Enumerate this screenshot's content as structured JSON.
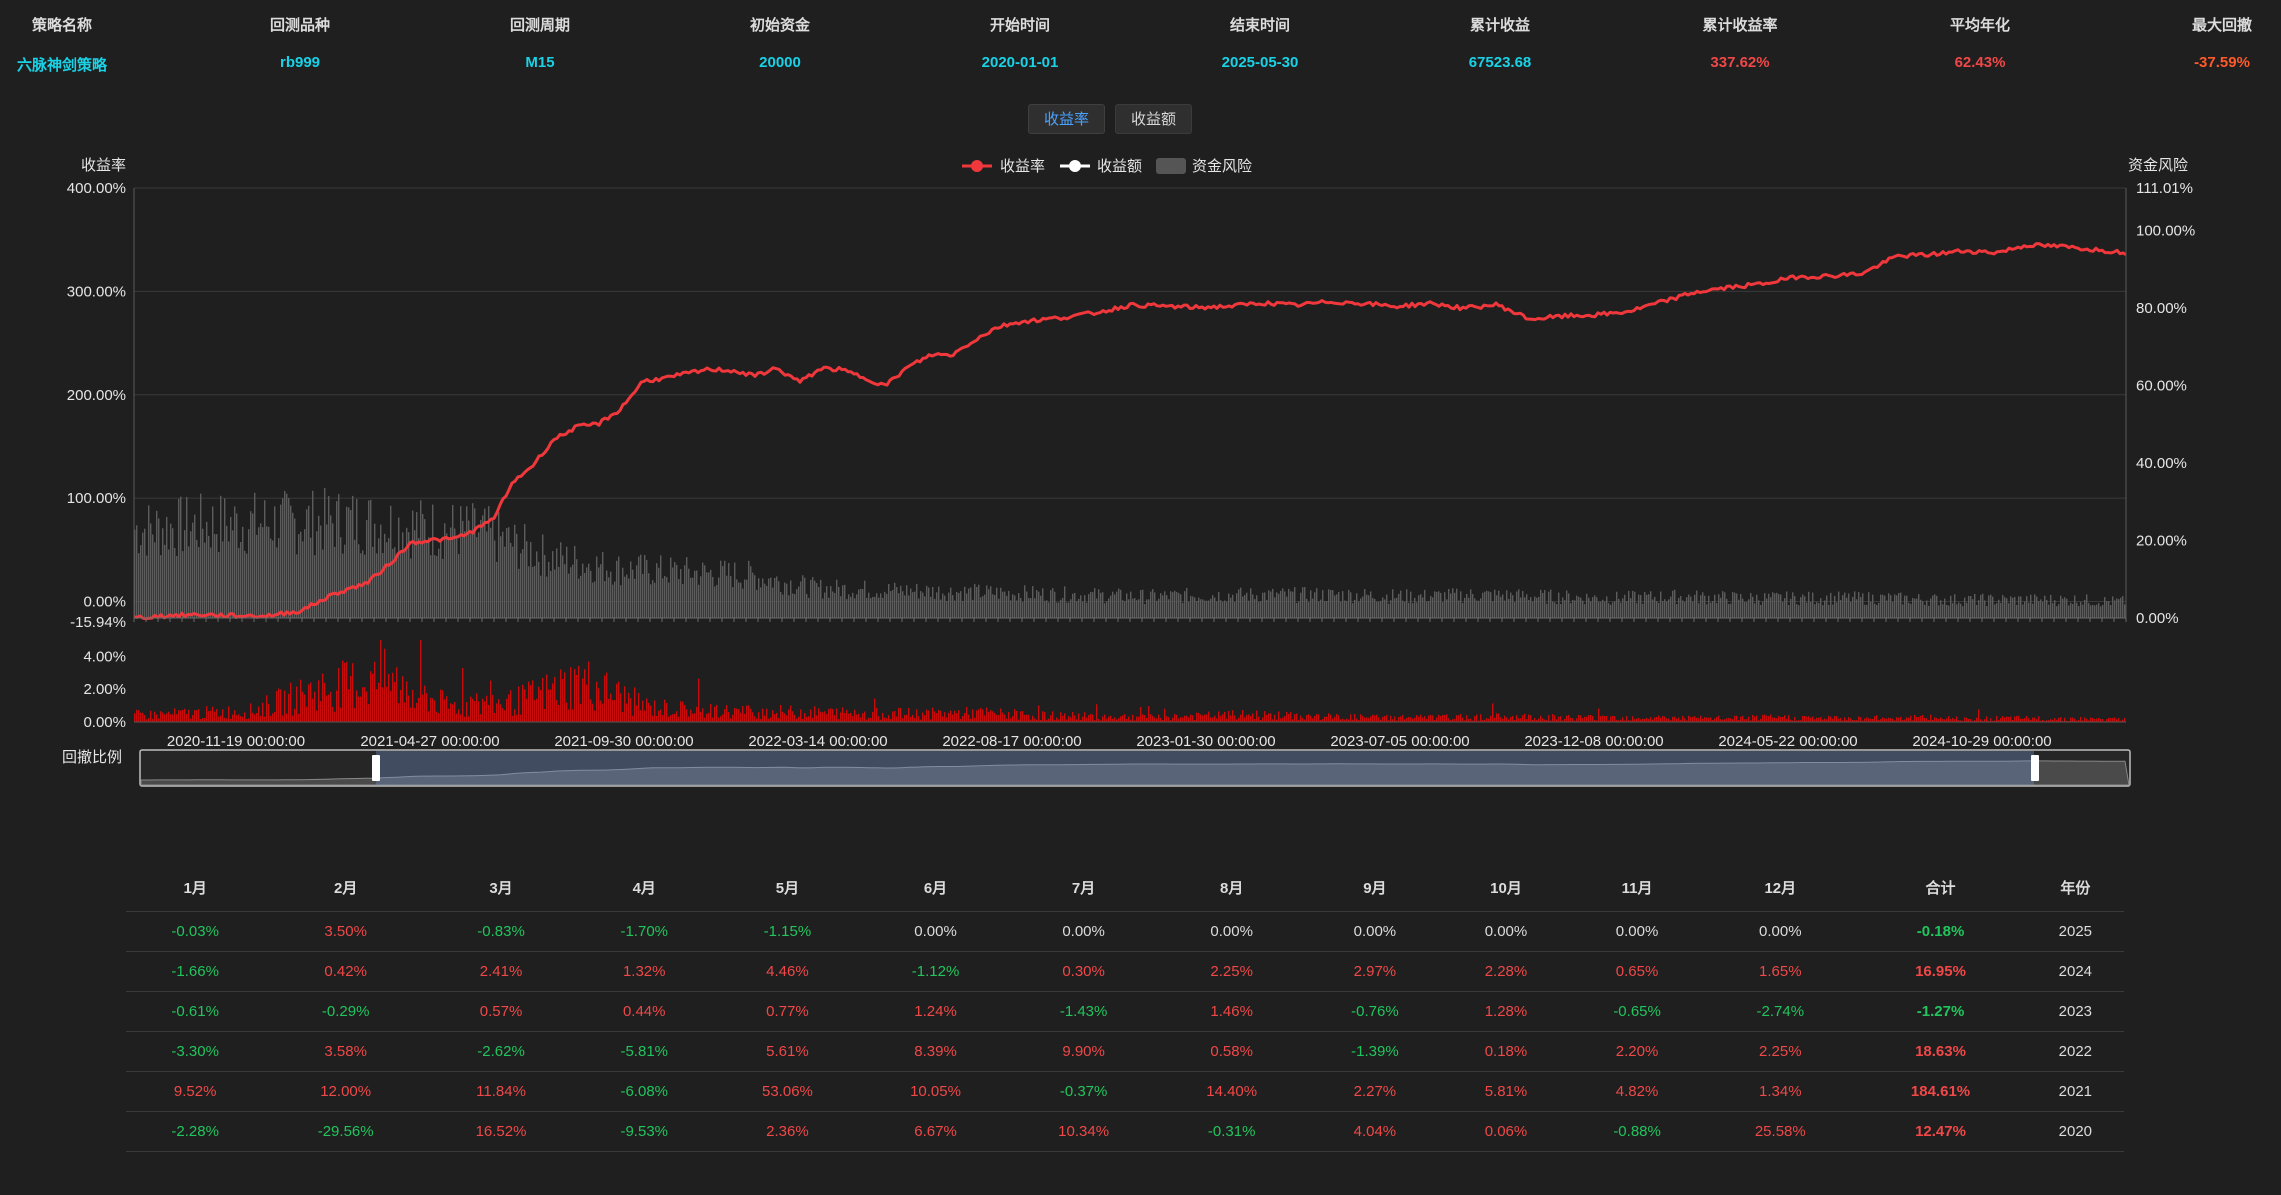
{
  "summary": {
    "headers": [
      "策略名称",
      "回测品种",
      "回测周期",
      "初始资金",
      "开始时间",
      "结束时间",
      "累计收益",
      "累计收益率",
      "平均年化",
      "最大回撤"
    ],
    "values": [
      "六脉神剑策略",
      "rb999",
      "M15",
      "20000",
      "2020-01-01",
      "2025-05-30",
      "67523.68",
      "337.62%",
      "62.43%",
      "-37.59%"
    ],
    "value_colors": [
      "cyan",
      "cyan",
      "cyan",
      "cyan",
      "cyan",
      "cyan",
      "cyan",
      "red",
      "red",
      "orange"
    ]
  },
  "toggle": {
    "options": [
      "收益率",
      "收益额"
    ],
    "active": "收益率",
    "active_color": "#4aa3ff"
  },
  "chart_data": {
    "type": "line",
    "legend": [
      "收益率",
      "收益额",
      "资金风险"
    ],
    "legend_placement": "top-center",
    "colors": {
      "return_rate": "#f0383c",
      "return_amount": "#ffffff",
      "capital_risk": "#5a5a5a",
      "drawdown": "#d40c0c"
    },
    "left_axis": {
      "name": "收益率",
      "ticks": [
        "400.00%",
        "300.00%",
        "200.00%",
        "100.00%",
        "0.00%",
        "-15.94%"
      ],
      "ylim": [
        -15.94,
        400
      ]
    },
    "right_axis": {
      "name": "资金风险",
      "ticks": [
        "111.01%",
        "100.00%",
        "80.00%",
        "60.00%",
        "40.00%",
        "20.00%",
        "0.00%"
      ],
      "ylim": [
        0,
        111.01
      ]
    },
    "drawdown_axis": {
      "ticks": [
        "4.00%",
        "2.00%",
        "0.00%"
      ],
      "ylim": [
        0,
        5
      ]
    },
    "x_ticks": [
      "2020-11-19 00:00:00",
      "2021-04-27 00:00:00",
      "2021-09-30 00:00:00",
      "2022-03-14 00:00:00",
      "2022-08-17 00:00:00",
      "2023-01-30 00:00:00",
      "2023-07-05 00:00:00",
      "2023-12-08 00:00:00",
      "2024-05-22 00:00:00",
      "2024-10-29 00:00:00"
    ],
    "series": [
      {
        "name": "收益率",
        "x": [
          "2020-06-01",
          "2020-07-01",
          "2020-08-01",
          "2020-09-01",
          "2020-10-01",
          "2020-11-01",
          "2020-12-01",
          "2021-01-01",
          "2021-01-20",
          "2021-02-10",
          "2021-03-01",
          "2021-03-20",
          "2021-04-05",
          "2021-04-25",
          "2021-05-15",
          "2021-06-01",
          "2021-06-20",
          "2021-07-10",
          "2021-08-01",
          "2021-08-20",
          "2021-09-10",
          "2021-10-01",
          "2021-10-20",
          "2021-11-10",
          "2021-12-01",
          "2021-12-20",
          "2022-01-10",
          "2022-02-01",
          "2022-02-20",
          "2022-03-10",
          "2022-04-01",
          "2022-04-20",
          "2022-05-10",
          "2022-06-01",
          "2022-06-20",
          "2022-07-10",
          "2022-08-01",
          "2022-08-20",
          "2022-09-10",
          "2022-10-01",
          "2022-11-01",
          "2022-12-01",
          "2023-01-01",
          "2023-02-01",
          "2023-03-01",
          "2023-04-01",
          "2023-05-01",
          "2023-06-01",
          "2023-07-01",
          "2023-08-01",
          "2023-09-01",
          "2023-10-01",
          "2023-11-01",
          "2023-12-01",
          "2024-01-01",
          "2024-02-01",
          "2024-03-01",
          "2024-04-01",
          "2024-05-01",
          "2024-06-01",
          "2024-07-01",
          "2024-08-01",
          "2024-09-01",
          "2024-10-01",
          "2024-11-01",
          "2024-12-01",
          "2025-01-01",
          "2025-02-01",
          "2025-03-01",
          "2025-04-01",
          "2025-05-30"
        ],
        "values": [
          -15.9,
          -13.7,
          -12.6,
          -13.8,
          -13.9,
          -8.9,
          7.2,
          18.3,
          35.6,
          57.2,
          59.5,
          60.5,
          66.8,
          78.9,
          116.6,
          131.5,
          156.4,
          168.3,
          172.2,
          185.6,
          213.3,
          216.1,
          220.5,
          224.7,
          223.5,
          218.2,
          225.5,
          212.3,
          225.5,
          224.4,
          216.4,
          208.7,
          226.3,
          238.8,
          238.5,
          252.5,
          265.6,
          270.4,
          272.6,
          274.9,
          279.8,
          286.9,
          285.7,
          284.4,
          285.7,
          288.8,
          286.6,
          290.0,
          288.5,
          285.4,
          288.5,
          283.6,
          287.2,
          273.1,
          276.0,
          277.2,
          280.6,
          290.1,
          299.3,
          303.8,
          307.3,
          314.0,
          314.9,
          317.4,
          334.1,
          335.5,
          339.2,
          337.6,
          344.9,
          343.4,
          337.6
        ]
      },
      {
        "name": "收益额",
        "values": []
      },
      {
        "name": "资金风险",
        "x": [
          "2020-06",
          "2020-08",
          "2020-10",
          "2020-12",
          "2021-02",
          "2021-04",
          "2021-06",
          "2021-08",
          "2021-10",
          "2021-12",
          "2022-02",
          "2022-04",
          "2022-06",
          "2022-08",
          "2022-10",
          "2022-12",
          "2023-02",
          "2023-04",
          "2023-06",
          "2023-08",
          "2023-10",
          "2023-12",
          "2024-02",
          "2024-04",
          "2024-06",
          "2024-08",
          "2024-10",
          "2024-12",
          "2025-02",
          "2025-04",
          "2025-05"
        ],
        "values": [
          27.0,
          28.5,
          29.0,
          29.5,
          27.5,
          26.0,
          18.5,
          15.0,
          14.0,
          13.0,
          9.0,
          8.5,
          8.0,
          7.5,
          7.0,
          6.5,
          7.0,
          7.0,
          7.0,
          6.5,
          7.0,
          6.5,
          6.0,
          6.5,
          6.0,
          6.0,
          6.0,
          5.5,
          5.5,
          5.5,
          5.0
        ]
      },
      {
        "name": "回撤比例",
        "x": [
          "2020-06",
          "2020-09",
          "2020-11",
          "2021-01",
          "2021-03",
          "2021-05",
          "2021-07",
          "2021-09",
          "2021-11",
          "2022-01",
          "2022-03",
          "2022-05",
          "2022-07",
          "2022-09",
          "2022-11",
          "2023-01",
          "2023-03",
          "2023-05",
          "2023-07",
          "2023-09",
          "2023-11",
          "2024-01",
          "2024-03",
          "2024-05",
          "2024-07",
          "2024-09",
          "2024-11",
          "2025-01",
          "2025-03",
          "2025-05"
        ],
        "values": [
          0.8,
          1.2,
          3.5,
          4.8,
          1.8,
          2.2,
          4.5,
          1.6,
          1.2,
          1.1,
          1.0,
          0.9,
          1.0,
          0.7,
          0.6,
          0.6,
          0.8,
          0.6,
          0.5,
          0.5,
          0.6,
          0.5,
          0.5,
          0.4,
          0.5,
          0.4,
          0.5,
          0.4,
          0.4,
          0.3
        ]
      }
    ],
    "zoom": {
      "label": "回撤比例",
      "start": "2020-11-19",
      "end": "2024-12-31"
    }
  },
  "monthly_table": {
    "headers": [
      "1月",
      "2月",
      "3月",
      "4月",
      "5月",
      "6月",
      "7月",
      "8月",
      "9月",
      "10月",
      "11月",
      "12月",
      "合计",
      "年份"
    ],
    "rows": [
      [
        "-0.03%",
        "3.50%",
        "-0.83%",
        "-1.70%",
        "-1.15%",
        "0.00%",
        "0.00%",
        "0.00%",
        "0.00%",
        "0.00%",
        "0.00%",
        "0.00%",
        "-0.18%",
        "2025"
      ],
      [
        "-1.66%",
        "0.42%",
        "2.41%",
        "1.32%",
        "4.46%",
        "-1.12%",
        "0.30%",
        "2.25%",
        "2.97%",
        "2.28%",
        "0.65%",
        "1.65%",
        "16.95%",
        "2024"
      ],
      [
        "-0.61%",
        "-0.29%",
        "0.57%",
        "0.44%",
        "0.77%",
        "1.24%",
        "-1.43%",
        "1.46%",
        "-0.76%",
        "1.28%",
        "-0.65%",
        "-2.74%",
        "-1.27%",
        "2023"
      ],
      [
        "-3.30%",
        "3.58%",
        "-2.62%",
        "-5.81%",
        "5.61%",
        "8.39%",
        "9.90%",
        "0.58%",
        "-1.39%",
        "0.18%",
        "2.20%",
        "2.25%",
        "18.63%",
        "2022"
      ],
      [
        "9.52%",
        "12.00%",
        "11.84%",
        "-6.08%",
        "53.06%",
        "10.05%",
        "-0.37%",
        "14.40%",
        "2.27%",
        "5.81%",
        "4.82%",
        "1.34%",
        "184.61%",
        "2021"
      ],
      [
        "-2.28%",
        "-29.56%",
        "16.52%",
        "-9.53%",
        "2.36%",
        "6.67%",
        "10.34%",
        "-0.31%",
        "4.04%",
        "0.06%",
        "-0.88%",
        "25.58%",
        "12.47%",
        "2020"
      ]
    ]
  }
}
